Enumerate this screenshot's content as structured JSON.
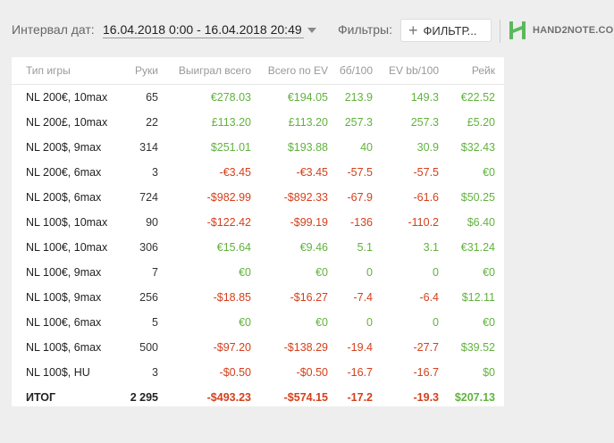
{
  "header": {
    "date_label": "Интервал дат:",
    "date_range": "16.04.2018 0:00 - 16.04.2018 20:49",
    "filters_label": "Фильтры:",
    "filter_button_label": "ФИЛЬТР...",
    "logo_text": "HAND2NOTE.CO"
  },
  "colors": {
    "positive": "#62b23f",
    "negative": "#d4401c",
    "accent": "#5cb85c"
  },
  "table": {
    "columns": [
      "Тип игры",
      "Руки",
      "Выиграл всего",
      "Всего по EV",
      "бб/100",
      "EV bb/100",
      "Рейк"
    ],
    "rows": [
      {
        "game": "NL 200€, 10max",
        "hands": "65",
        "won": "€278.03",
        "ev": "€194.05",
        "bb100": "213.9",
        "evbb100": "149.3",
        "rake": "€22.52",
        "won_s": "pos",
        "ev_s": "pos",
        "bb_s": "pos",
        "evbb_s": "pos",
        "rake_s": "pos"
      },
      {
        "game": "NL 200£, 10max",
        "hands": "22",
        "won": "£113.20",
        "ev": "£113.20",
        "bb100": "257.3",
        "evbb100": "257.3",
        "rake": "£5.20",
        "won_s": "pos",
        "ev_s": "pos",
        "bb_s": "pos",
        "evbb_s": "pos",
        "rake_s": "pos"
      },
      {
        "game": "NL 200$, 9max",
        "hands": "314",
        "won": "$251.01",
        "ev": "$193.88",
        "bb100": "40",
        "evbb100": "30.9",
        "rake": "$32.43",
        "won_s": "pos",
        "ev_s": "pos",
        "bb_s": "pos",
        "evbb_s": "pos",
        "rake_s": "pos"
      },
      {
        "game": "NL 200€, 6max",
        "hands": "3",
        "won": "-€3.45",
        "ev": "-€3.45",
        "bb100": "-57.5",
        "evbb100": "-57.5",
        "rake": "€0",
        "won_s": "neg",
        "ev_s": "neg",
        "bb_s": "neg",
        "evbb_s": "neg",
        "rake_s": "pos"
      },
      {
        "game": "NL 200$, 6max",
        "hands": "724",
        "won": "-$982.99",
        "ev": "-$892.33",
        "bb100": "-67.9",
        "evbb100": "-61.6",
        "rake": "$50.25",
        "won_s": "neg",
        "ev_s": "neg",
        "bb_s": "neg",
        "evbb_s": "neg",
        "rake_s": "pos"
      },
      {
        "game": "NL 100$, 10max",
        "hands": "90",
        "won": "-$122.42",
        "ev": "-$99.19",
        "bb100": "-136",
        "evbb100": "-110.2",
        "rake": "$6.40",
        "won_s": "neg",
        "ev_s": "neg",
        "bb_s": "neg",
        "evbb_s": "neg",
        "rake_s": "pos"
      },
      {
        "game": "NL 100€, 10max",
        "hands": "306",
        "won": "€15.64",
        "ev": "€9.46",
        "bb100": "5.1",
        "evbb100": "3.1",
        "rake": "€31.24",
        "won_s": "pos",
        "ev_s": "pos",
        "bb_s": "pos",
        "evbb_s": "pos",
        "rake_s": "pos"
      },
      {
        "game": "NL 100€, 9max",
        "hands": "7",
        "won": "€0",
        "ev": "€0",
        "bb100": "0",
        "evbb100": "0",
        "rake": "€0",
        "won_s": "pos",
        "ev_s": "pos",
        "bb_s": "pos",
        "evbb_s": "pos",
        "rake_s": "pos"
      },
      {
        "game": "NL 100$, 9max",
        "hands": "256",
        "won": "-$18.85",
        "ev": "-$16.27",
        "bb100": "-7.4",
        "evbb100": "-6.4",
        "rake": "$12.11",
        "won_s": "neg",
        "ev_s": "neg",
        "bb_s": "neg",
        "evbb_s": "neg",
        "rake_s": "pos"
      },
      {
        "game": "NL 100€, 6max",
        "hands": "5",
        "won": "€0",
        "ev": "€0",
        "bb100": "0",
        "evbb100": "0",
        "rake": "€0",
        "won_s": "pos",
        "ev_s": "pos",
        "bb_s": "pos",
        "evbb_s": "pos",
        "rake_s": "pos"
      },
      {
        "game": "NL 100$, 6max",
        "hands": "500",
        "won": "-$97.20",
        "ev": "-$138.29",
        "bb100": "-19.4",
        "evbb100": "-27.7",
        "rake": "$39.52",
        "won_s": "neg",
        "ev_s": "neg",
        "bb_s": "neg",
        "evbb_s": "neg",
        "rake_s": "pos"
      },
      {
        "game": "NL 100$, HU",
        "hands": "3",
        "won": "-$0.50",
        "ev": "-$0.50",
        "bb100": "-16.7",
        "evbb100": "-16.7",
        "rake": "$0",
        "won_s": "neg",
        "ev_s": "neg",
        "bb_s": "neg",
        "evbb_s": "neg",
        "rake_s": "pos"
      }
    ],
    "total": {
      "game": "ИТОГ",
      "hands": "2 295",
      "won": "-$493.23",
      "ev": "-$574.15",
      "bb100": "-17.2",
      "evbb100": "-19.3",
      "rake": "$207.13",
      "won_s": "neg",
      "ev_s": "neg",
      "bb_s": "neg",
      "evbb_s": "neg",
      "rake_s": "pos"
    }
  }
}
